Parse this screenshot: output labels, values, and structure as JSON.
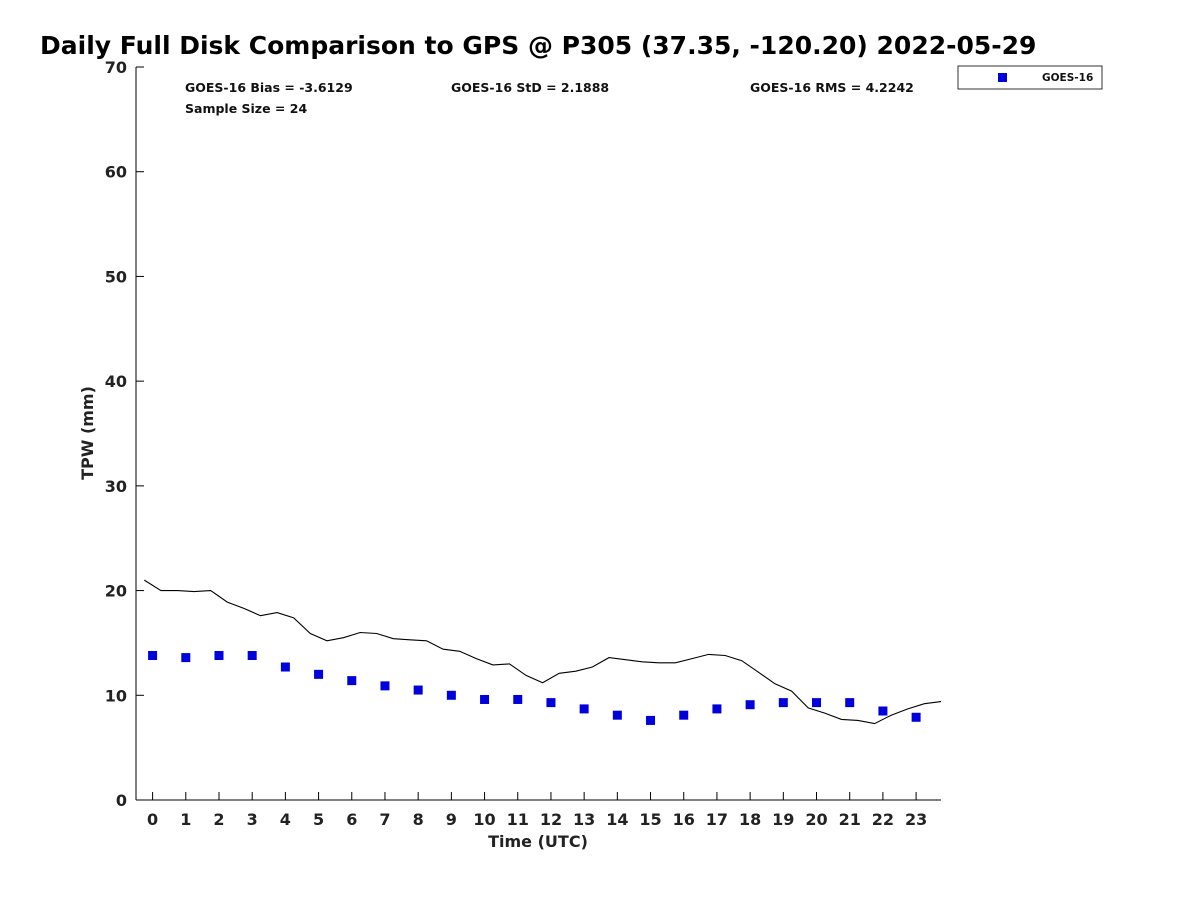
{
  "chart_data": {
    "type": "scatter",
    "title": "Daily Full Disk Comparison to GPS @ P305 (37.35, -120.20) 2022-05-29",
    "xlabel": "Time (UTC)",
    "ylabel": "TPW (mm)",
    "xlim": [
      -0.5,
      23.75
    ],
    "ylim": [
      0,
      70
    ],
    "xticks": [
      0,
      1,
      2,
      3,
      4,
      5,
      6,
      7,
      8,
      9,
      10,
      11,
      12,
      13,
      14,
      15,
      16,
      17,
      18,
      19,
      20,
      21,
      22,
      23
    ],
    "yticks": [
      0,
      10,
      20,
      30,
      40,
      50,
      60,
      70
    ],
    "grid": false,
    "legend": {
      "position": "top-right",
      "entries": [
        {
          "label": "GOES-16"
        }
      ]
    },
    "stats": {
      "bias": "GOES-16 Bias = -3.6129",
      "std": "GOES-16 StD = 2.1888",
      "rms": "GOES-16 RMS = 4.2242",
      "sample_size": "Sample Size = 24"
    },
    "series": [
      {
        "name": "GOES-16",
        "kind": "scatter",
        "marker": "square",
        "color": "#0000dd",
        "x": [
          0,
          1,
          2,
          3,
          4,
          5,
          6,
          7,
          8,
          9,
          10,
          11,
          12,
          13,
          14,
          15,
          16,
          17,
          18,
          19,
          20,
          21,
          22,
          23
        ],
        "y": [
          13.8,
          13.6,
          13.8,
          13.8,
          12.7,
          12.0,
          11.4,
          10.9,
          10.5,
          10.0,
          9.6,
          9.6,
          9.3,
          8.7,
          8.1,
          7.6,
          8.1,
          8.7,
          9.1,
          9.3,
          9.3,
          9.3,
          8.5,
          7.9
        ]
      },
      {
        "kind": "line",
        "color": "#000000",
        "x": [
          -0.25,
          0.25,
          0.75,
          1.25,
          1.75,
          2.25,
          2.75,
          3.25,
          3.75,
          4.25,
          4.75,
          5.25,
          5.75,
          6.25,
          6.75,
          7.25,
          7.75,
          8.25,
          8.75,
          9.25,
          9.75,
          10.25,
          10.75,
          11.25,
          11.75,
          12.25,
          12.75,
          13.25,
          13.75,
          14.25,
          14.75,
          15.25,
          15.75,
          16.25,
          16.75,
          17.25,
          17.75,
          18.25,
          18.75,
          19.25,
          19.75,
          20.25,
          20.75,
          21.25,
          21.75,
          22.25,
          22.75,
          23.25,
          23.75
        ],
        "y": [
          21.0,
          20.0,
          20.0,
          19.9,
          20.0,
          18.9,
          18.3,
          17.6,
          17.9,
          17.4,
          15.9,
          15.2,
          15.5,
          16.0,
          15.9,
          15.4,
          15.3,
          15.2,
          14.4,
          14.2,
          13.5,
          12.9,
          13.0,
          11.9,
          11.2,
          12.1,
          12.3,
          12.7,
          13.6,
          13.4,
          13.2,
          13.1,
          13.1,
          13.5,
          13.9,
          13.8,
          13.3,
          12.2,
          11.1,
          10.4,
          8.8,
          8.3,
          7.7,
          7.6,
          7.3,
          8.1,
          8.7,
          9.2,
          9.4
        ]
      }
    ]
  }
}
